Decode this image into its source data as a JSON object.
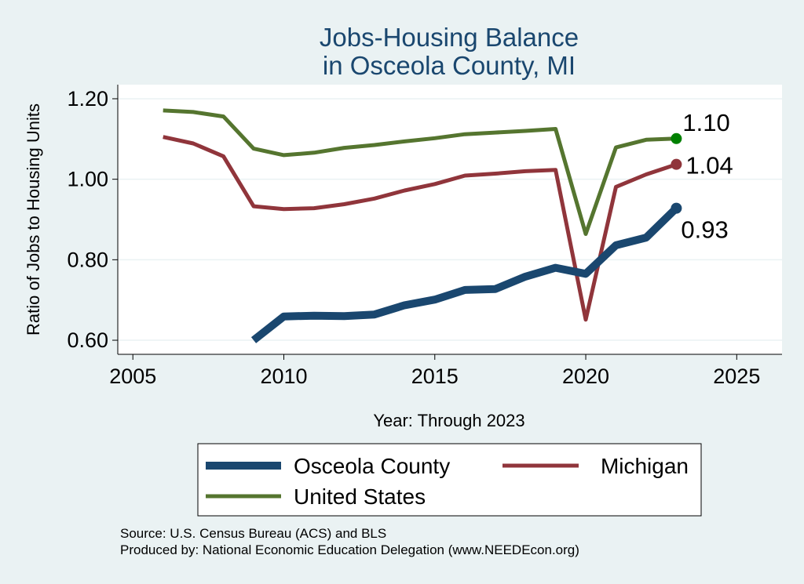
{
  "chart_data": {
    "type": "line",
    "title": [
      "Jobs-Housing Balance",
      "in Osceola County, MI"
    ],
    "xlabel": "Year: Through 2023",
    "ylabel": "Ratio of Jobs to Housing Units",
    "xlim": [
      2004.5,
      2026.5
    ],
    "ylim": [
      0.565,
      1.235
    ],
    "xticks": [
      2005,
      2010,
      2015,
      2020,
      2025
    ],
    "yticks": [
      0.6,
      0.8,
      1.0,
      1.2
    ],
    "ytick_labels": [
      "0.60",
      "0.80",
      "1.00",
      "1.20"
    ],
    "grid": true,
    "legend_position": "bottom",
    "series": [
      {
        "name": "Osceola County",
        "color": "#1a476f",
        "line_width": 10,
        "x": [
          2009,
          2010,
          2011,
          2012,
          2013,
          2014,
          2015,
          2016,
          2017,
          2018,
          2019,
          2020,
          2021,
          2022,
          2023
        ],
        "y": [
          0.6,
          0.659,
          0.661,
          0.66,
          0.664,
          0.687,
          0.701,
          0.725,
          0.727,
          0.758,
          0.78,
          0.765,
          0.836,
          0.855,
          0.928
        ],
        "end_label": "0.93"
      },
      {
        "name": "Michigan",
        "color": "#90353b",
        "line_width": 5,
        "x": [
          2006,
          2007,
          2008,
          2009,
          2010,
          2011,
          2012,
          2013,
          2014,
          2015,
          2016,
          2017,
          2018,
          2019,
          2020,
          2021,
          2022,
          2023
        ],
        "y": [
          1.105,
          1.089,
          1.057,
          0.933,
          0.926,
          0.928,
          0.938,
          0.952,
          0.972,
          0.988,
          1.009,
          1.014,
          1.02,
          1.023,
          0.651,
          0.981,
          1.012,
          1.037
        ],
        "end_label": "1.04"
      },
      {
        "name": "United States",
        "color": "#55752f",
        "line_width": 5,
        "x": [
          2006,
          2007,
          2008,
          2009,
          2010,
          2011,
          2012,
          2013,
          2014,
          2015,
          2016,
          2017,
          2018,
          2019,
          2020,
          2021,
          2022,
          2023
        ],
        "y": [
          1.171,
          1.167,
          1.156,
          1.076,
          1.06,
          1.066,
          1.078,
          1.085,
          1.094,
          1.102,
          1.112,
          1.116,
          1.12,
          1.125,
          0.864,
          1.079,
          1.098,
          1.101
        ],
        "end_label": "1.10"
      }
    ],
    "end_markers": [
      {
        "series": "Osceola County",
        "color": "#1a476f"
      },
      {
        "series": "Michigan",
        "color": "#90353b"
      },
      {
        "series": "United States",
        "color": "#008000"
      }
    ]
  },
  "notes": [
    "Source: U.S. Census Bureau (ACS) and BLS",
    "Produced by: National Economic Education Delegation (www.NEEDEcon.org)"
  ]
}
